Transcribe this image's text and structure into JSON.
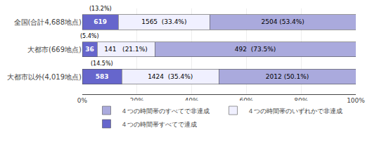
{
  "chart_data": {
    "type": "bar",
    "orientation": "horizontal",
    "stacked": true,
    "categories": [
      "全国(合計4,688地点)",
      "大都市(669地点)",
      "大都市以外(4,019地点)"
    ],
    "series": [
      {
        "name": "４つの時間帯すべてで達成",
        "color": "#6666cc",
        "values": [
          13.2,
          5.4,
          14.5
        ],
        "value_labels": [
          "(13.2%)",
          "(5.4%)",
          "(14.5%)"
        ],
        "count_labels": [
          "619",
          "36",
          "583"
        ]
      },
      {
        "name": "４つの時間帯のいずれかで非達成",
        "color": "#f0f0ff",
        "values": [
          33.4,
          21.1,
          35.4
        ],
        "value_labels": [
          "1565  (33.4%)",
          "141   (21.1%)",
          "1424  (35.4%)"
        ]
      },
      {
        "name": "４つの時間帯のすべてで非達成",
        "color": "#aaaadd",
        "values": [
          53.4,
          73.5,
          50.1
        ],
        "value_labels": [
          "2504 (53.4%)",
          "492  (73.5%)",
          "2012 (50.1%)"
        ]
      }
    ],
    "xlim": [
      0,
      100
    ],
    "xticks": [
      {
        "value": 0,
        "label": "0%"
      },
      {
        "value": 20,
        "label": "20%"
      },
      {
        "value": 40,
        "label": "40%"
      },
      {
        "value": 60,
        "label": "60%"
      },
      {
        "value": 80,
        "label": "80%"
      },
      {
        "value": 100,
        "label": "100%"
      }
    ],
    "grid": true,
    "legend": "bottom",
    "data_labels": true
  }
}
